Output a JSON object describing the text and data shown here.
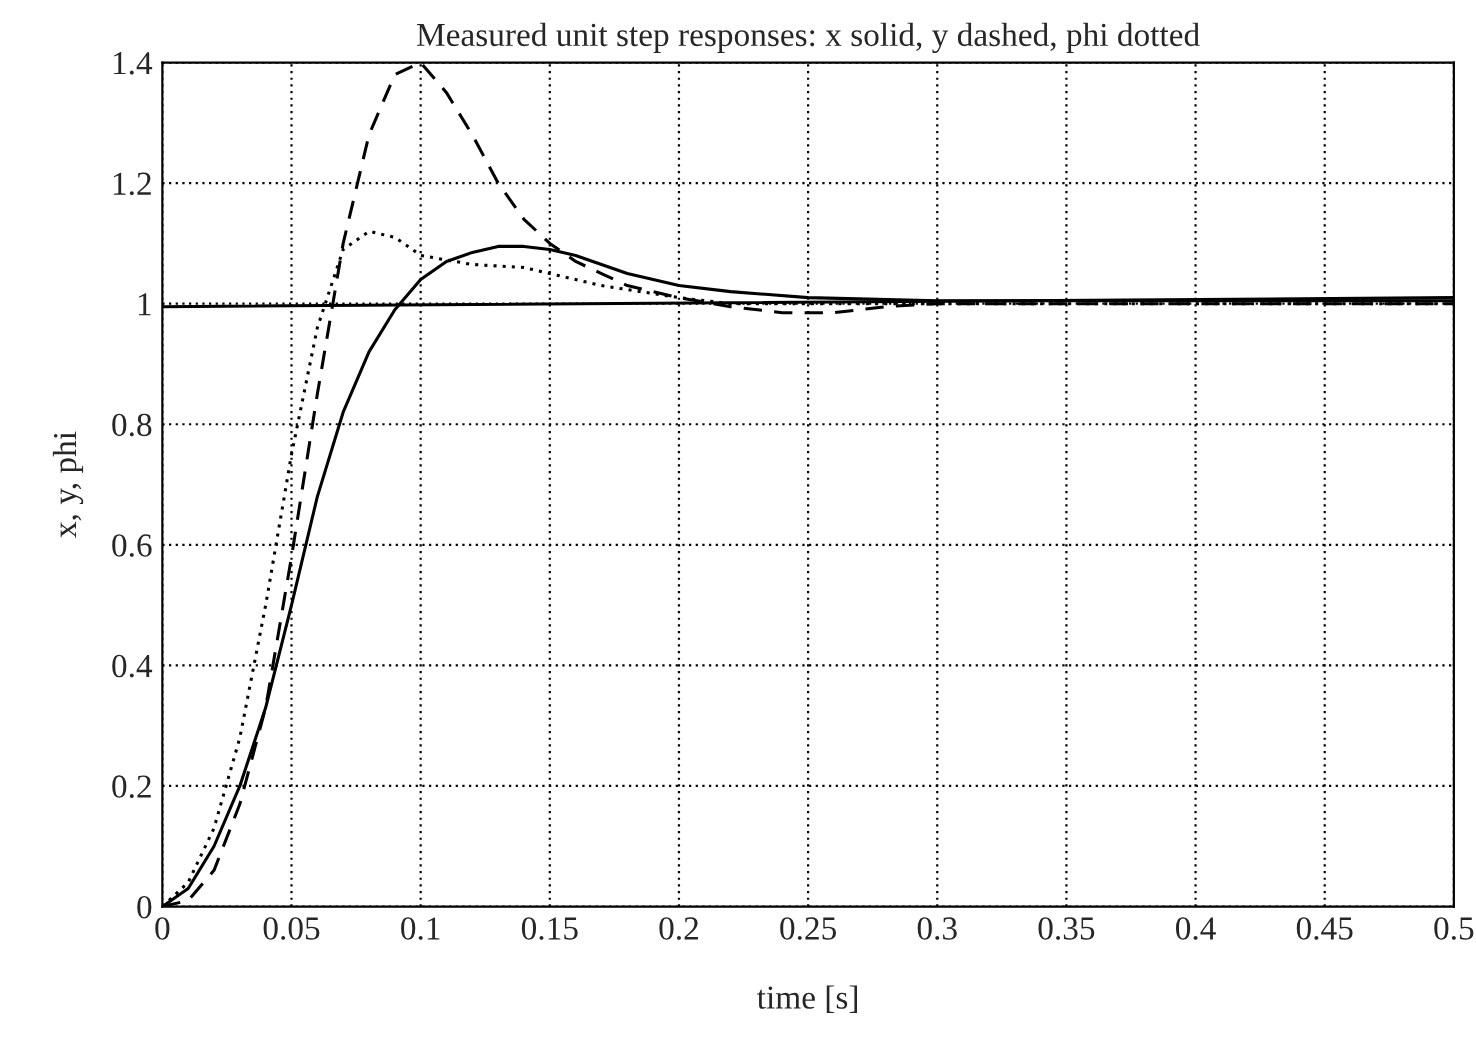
{
  "chart_data": {
    "type": "line",
    "title": "Measured unit step responses: x solid, y dashed, phi dotted",
    "xlabel": "time [s]",
    "ylabel": "x, y, phi",
    "xlim": [
      0,
      0.5
    ],
    "ylim": [
      0,
      1.4
    ],
    "xticks": [
      0,
      0.05,
      0.1,
      0.15,
      0.2,
      0.25,
      0.3,
      0.35,
      0.4,
      0.45,
      0.5
    ],
    "yticks": [
      0,
      0.2,
      0.4,
      0.6,
      0.8,
      1,
      1.2,
      1.4
    ],
    "grid": true,
    "legend": false,
    "series": [
      {
        "color": "#000000",
        "line_style": "solid",
        "x": [
          0,
          0.01,
          0.02,
          0.03,
          0.04,
          0.05,
          0.06,
          0.07,
          0.08,
          0.09,
          0.1,
          0.11,
          0.12,
          0.13,
          0.14,
          0.15,
          0.16,
          0.17,
          0.18,
          0.19,
          0.2,
          0.22,
          0.25,
          0.3,
          0.5
        ],
        "values": [
          0,
          0.03,
          0.1,
          0.2,
          0.33,
          0.5,
          0.68,
          0.82,
          0.92,
          0.99,
          1.04,
          1.07,
          1.085,
          1.095,
          1.095,
          1.09,
          1.08,
          1.065,
          1.05,
          1.04,
          1.03,
          1.02,
          1.01,
          1.005,
          1.005
        ]
      },
      {
        "color": "#000000",
        "line_style": "dashed",
        "x": [
          0,
          0.01,
          0.02,
          0.03,
          0.04,
          0.05,
          0.06,
          0.07,
          0.08,
          0.09,
          0.1,
          0.11,
          0.12,
          0.13,
          0.14,
          0.15,
          0.16,
          0.17,
          0.18,
          0.2,
          0.22,
          0.24,
          0.26,
          0.28,
          0.3,
          0.5
        ],
        "values": [
          0,
          0.01,
          0.06,
          0.17,
          0.33,
          0.58,
          0.85,
          1.1,
          1.28,
          1.38,
          1.4,
          1.35,
          1.28,
          1.2,
          1.14,
          1.1,
          1.07,
          1.05,
          1.03,
          1.01,
          0.995,
          0.985,
          0.985,
          0.995,
          1.0,
          1.0
        ]
      },
      {
        "color": "#000000",
        "line_style": "dotted",
        "x": [
          0,
          0.01,
          0.02,
          0.03,
          0.04,
          0.05,
          0.06,
          0.07,
          0.08,
          0.09,
          0.1,
          0.12,
          0.14,
          0.15,
          0.17,
          0.2,
          0.22,
          0.25,
          0.5
        ],
        "values": [
          0,
          0.04,
          0.13,
          0.28,
          0.5,
          0.75,
          0.96,
          1.09,
          1.12,
          1.11,
          1.08,
          1.065,
          1.06,
          1.05,
          1.03,
          1.01,
          1.0,
          1.0,
          1.0
        ]
      },
      {
        "color": "#000000",
        "line_style": "solid",
        "x": [
          0,
          0.5
        ],
        "values": [
          0.995,
          1.01
        ]
      }
    ]
  }
}
